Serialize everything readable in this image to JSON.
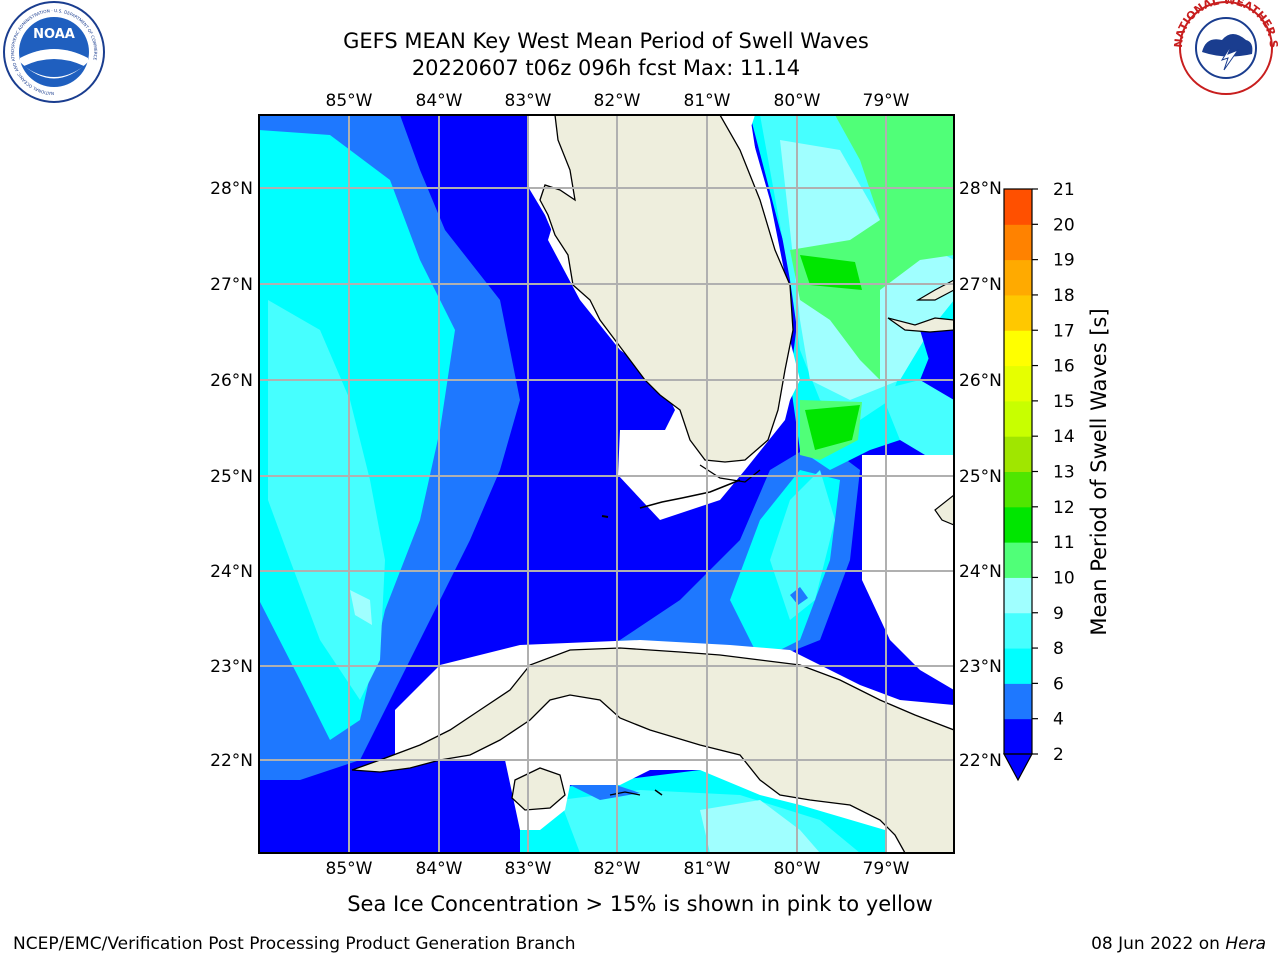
{
  "title": {
    "line1": "GEFS MEAN Key West Mean Period of Swell Waves",
    "line2": "20220607 t06z 096h fcst   Max: 11.14"
  },
  "map": {
    "lon_labels": [
      "85°W",
      "84°W",
      "83°W",
      "82°W",
      "81°W",
      "80°W",
      "79°W"
    ],
    "lat_labels": [
      "28°N",
      "27°N",
      "26°N",
      "25°N",
      "24°N",
      "23°N",
      "22°N"
    ],
    "land_color": "#eeeedd",
    "grid_color": "#b0b0b0"
  },
  "colorbar": {
    "label": "Mean Period of Swell Waves [s]",
    "ticks": [
      "2",
      "4",
      "6",
      "8",
      "9",
      "10",
      "11",
      "12",
      "13",
      "14",
      "15",
      "16",
      "17",
      "18",
      "19",
      "20",
      "21"
    ],
    "colors": [
      "#0000ff",
      "#1e78ff",
      "#00ffff",
      "#46ffff",
      "#a0ffff",
      "#50ff78",
      "#00e600",
      "#50e600",
      "#a0e600",
      "#c8ff00",
      "#e6ff00",
      "#ffff00",
      "#ffc800",
      "#ffaa00",
      "#ff8200",
      "#ff5000",
      "#ff0000"
    ]
  },
  "notes": {
    "ice": "Sea Ice Concentration > 15% is shown in pink to yellow"
  },
  "footer": {
    "left": "NCEP/EMC/Verification Post Processing Product Generation Branch",
    "right_date": "08 Jun 2022 on ",
    "right_machine": "Hera"
  },
  "logos": {
    "noaa_text": "NOAA",
    "noaa_ring": "NATIONAL OCEANIC AND ATMOSPHERIC ADMINISTRATION · U.S. DEPARTMENT OF COMMERCE",
    "nws_ring": "NATIONAL WEATHER SERVICE"
  }
}
